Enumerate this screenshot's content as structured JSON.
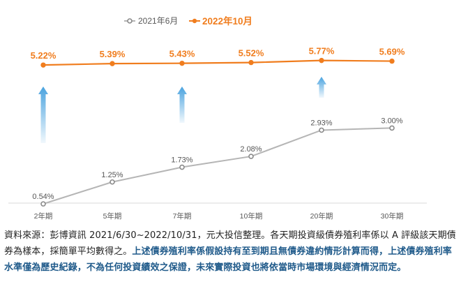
{
  "chart_data": {
    "type": "line",
    "categories": [
      "2年期",
      "5年期",
      "7年期",
      "10年期",
      "20年期",
      "30年期"
    ],
    "series": [
      {
        "name": "2021年6月",
        "values": [
          0.54,
          1.25,
          1.73,
          2.08,
          2.93,
          3.0
        ],
        "labels": [
          "0.54%",
          "1.25%",
          "1.73%",
          "2.08%",
          "2.93%",
          "3.00%"
        ],
        "color": "#b5b5b5",
        "marker_color": "#8a8a8a",
        "label_color": "#555555"
      },
      {
        "name": "2022年10月",
        "values": [
          5.22,
          5.39,
          5.43,
          5.52,
          5.77,
          5.69
        ],
        "labels": [
          "5.22%",
          "5.39%",
          "5.43%",
          "5.52%",
          "5.77%",
          "5.69%"
        ],
        "color": "#f07d1e",
        "marker_color": "#f07d1e",
        "label_color": "#f07d1e"
      }
    ],
    "annotation_arrows": [
      "2年期",
      "7年期",
      "20年期"
    ],
    "arrow_color": "#4aa3df",
    "legend_position": "top-center",
    "grid": false
  },
  "note": {
    "plain": "資料來源：彭博資訊 2021/6/30~2022/10/31，元大投信整理。各天期投資級債券殖利率係以 A 評級該天期債券為樣本，採簡單平均數得之。",
    "highlight": "上述債券殖利率係假設持有至到期且無債券違約情形計算而得，上述債券殖利率水準僅為歷史紀錄，不為任何投資績效之保證，未來實際投資也將依當時市場環境與經濟情況而定。"
  }
}
